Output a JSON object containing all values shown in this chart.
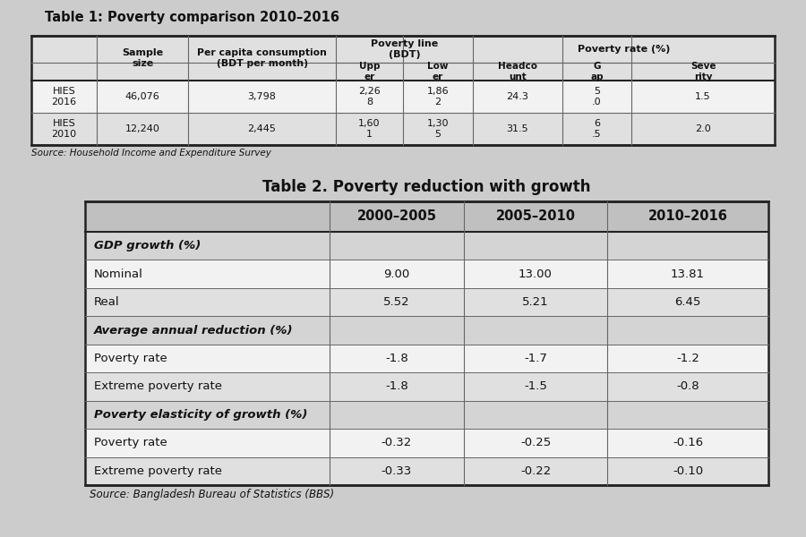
{
  "bg_color": "#cccccc",
  "table1_title": "Table 1: Poverty comparison 2010–2016",
  "table1_source": "Source: Household Income and Expenditure Survey",
  "table2_title": "Table 2. Poverty reduction with growth",
  "table2_source": "Source: Bangladesh Bureau of Statistics (BBS)",
  "table1_data": [
    [
      "HIES\n2016",
      "46,076",
      "3,798",
      "2,26\n8",
      "1,86\n2",
      "24.3",
      "5\n.0",
      "1.5"
    ],
    [
      "HIES\n2010",
      "12,240",
      "2,445",
      "1,60\n1",
      "1,30\n5",
      "31.5",
      "6\n.5",
      "2.0"
    ]
  ],
  "table2_col_headers": [
    "",
    "2000–2005",
    "2005–2010",
    "2010–2016"
  ],
  "table2_rows": [
    {
      "label": "GDP growth (%)",
      "bold_italic": true,
      "values": [
        "",
        "",
        ""
      ]
    },
    {
      "label": "Nominal",
      "bold_italic": false,
      "values": [
        "9.00",
        "13.00",
        "13.81"
      ]
    },
    {
      "label": "Real",
      "bold_italic": false,
      "values": [
        "5.52",
        "5.21",
        "6.45"
      ]
    },
    {
      "label": "Average annual reduction (%)",
      "bold_italic": true,
      "values": [
        "",
        "",
        ""
      ]
    },
    {
      "label": "Poverty rate",
      "bold_italic": false,
      "values": [
        "-1.8",
        "-1.7",
        "-1.2"
      ]
    },
    {
      "label": "Extreme poverty rate",
      "bold_italic": false,
      "values": [
        "-1.8",
        "-1.5",
        "-0.8"
      ]
    },
    {
      "label": "Poverty elasticity of growth (%)",
      "bold_italic": true,
      "values": [
        "",
        "",
        ""
      ]
    },
    {
      "label": "Poverty rate",
      "bold_italic": false,
      "values": [
        "-0.32",
        "-0.25",
        "-0.16"
      ]
    },
    {
      "label": "Extreme poverty rate",
      "bold_italic": false,
      "values": [
        "-0.33",
        "-0.22",
        "-0.10"
      ]
    }
  ],
  "cell_bg_white": "#f2f2f2",
  "cell_bg_light": "#e0e0e0",
  "cell_bg_header": "#c0c0c0",
  "cell_bg_section": "#d4d4d4",
  "border_dark": "#222222",
  "border_med": "#666666",
  "text_color": "#111111"
}
